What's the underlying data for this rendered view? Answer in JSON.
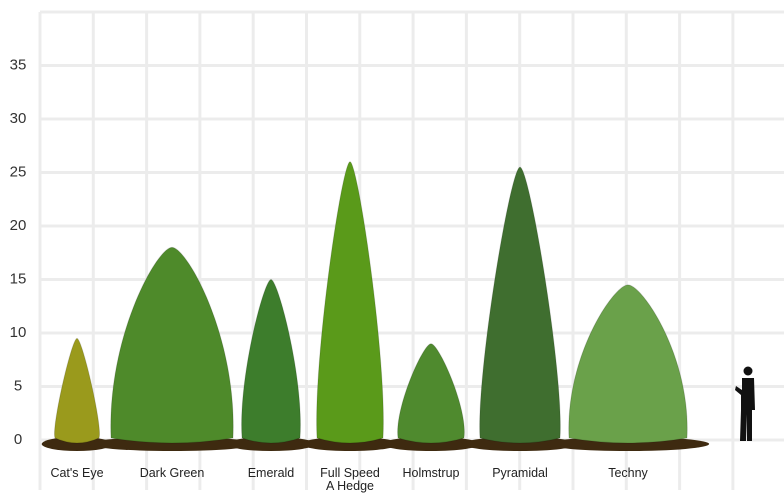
{
  "chart_data": {
    "type": "pictorial",
    "categories": [
      "Cat's Eye",
      "Dark Green",
      "Emerald",
      "Full Speed A Hedge",
      "Holmstrup",
      "Pyramidal",
      "Techny"
    ],
    "values": [
      9.5,
      18,
      15,
      26,
      9,
      25.5,
      14.5
    ],
    "colors": [
      "#9a9a1c",
      "#4e8a2a",
      "#3d7d2c",
      "#5a9a1a",
      "#4f8a2e",
      "#3f6e2f",
      "#6aa14a"
    ],
    "ylim": [
      0,
      40
    ],
    "yticks": [
      0,
      5,
      10,
      15,
      20,
      25,
      30,
      35
    ],
    "grid": true
  }
}
